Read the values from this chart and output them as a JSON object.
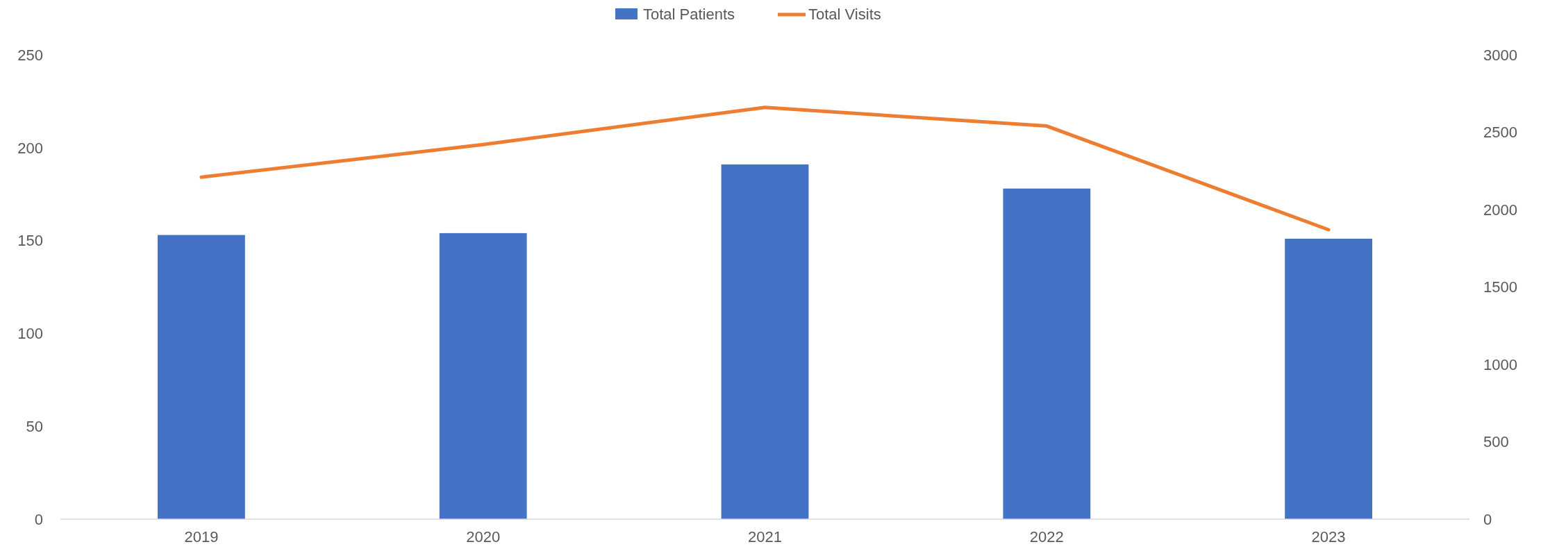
{
  "chart_data": {
    "type": "bar",
    "categories": [
      "2019",
      "2020",
      "2021",
      "2022",
      "2023"
    ],
    "series": [
      {
        "name": "Total Patients",
        "color": "#4472c4",
        "values": [
          153,
          154,
          191,
          178,
          151
        ]
      },
      {
        "name": "Total Visits",
        "type": "line",
        "axis": "y2",
        "color": "#ed7d31",
        "values": [
          2210,
          2420,
          2660,
          2540,
          1870
        ]
      }
    ],
    "ylim": [
      0,
      250
    ],
    "yticks": [
      0,
      50,
      100,
      150,
      200,
      250
    ],
    "y2lim": [
      0,
      3000
    ],
    "y2ticks": [
      0,
      500,
      1000,
      1500,
      2000,
      2500,
      3000
    ],
    "legend": "top",
    "grid": false,
    "marker": "none",
    "line_style": "solid"
  }
}
